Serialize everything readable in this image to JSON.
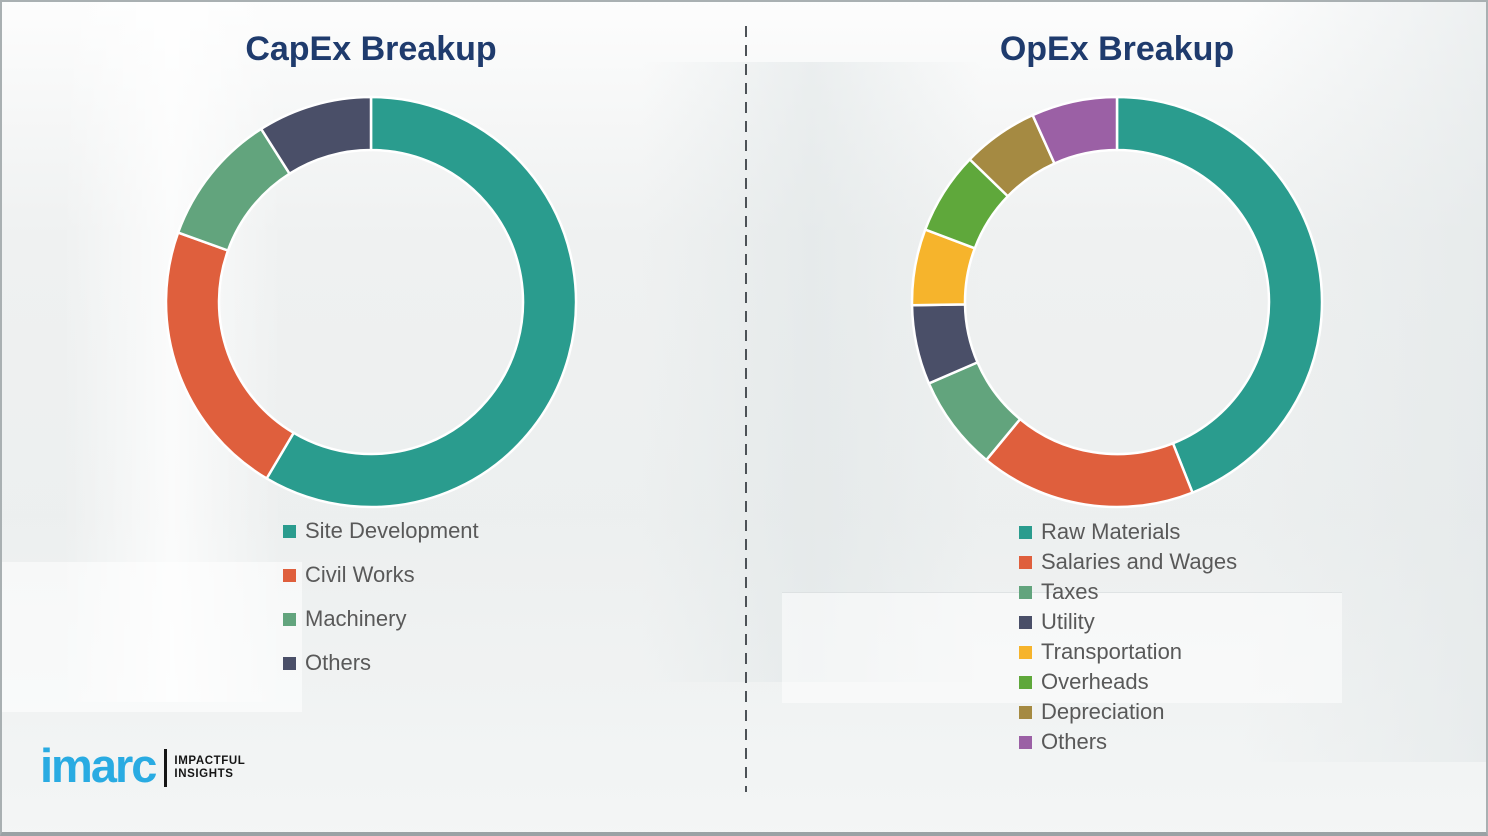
{
  "chart_data": [
    {
      "type": "pie",
      "subtype": "donut",
      "title": "CapEx Breakup",
      "categories": [
        "Site Development",
        "Civil Works",
        "Machinery",
        "Others"
      ],
      "values": [
        58.5,
        22,
        10.5,
        9
      ],
      "colors": [
        "#2A9C8E",
        "#DF5F3D",
        "#62A47D",
        "#4A4F68"
      ],
      "values_note": "percent shares estimated from arc angles; no numeric labels shown in chart",
      "legend_position": "below-left",
      "start_angle_deg": 0,
      "direction": "clockwise"
    },
    {
      "type": "pie",
      "subtype": "donut",
      "title": "OpEx Breakup",
      "categories": [
        "Raw Materials",
        "Salaries and Wages",
        "Taxes",
        "Utility",
        "Transportation",
        "Overheads",
        "Depreciation",
        "Others"
      ],
      "values": [
        44,
        17,
        7.5,
        6.25,
        6,
        6.5,
        6,
        6.75
      ],
      "colors": [
        "#2A9C8E",
        "#DF5F3D",
        "#62A47D",
        "#4A4F68",
        "#F6B42C",
        "#5FA83B",
        "#A58A42",
        "#9B60A5"
      ],
      "values_note": "percent shares estimated from arc angles; no numeric labels shown in chart",
      "legend_position": "below-left",
      "start_angle_deg": 0,
      "direction": "clockwise"
    }
  ],
  "logo": {
    "brand": "imarc",
    "tagline_line1": "IMPACTFUL",
    "tagline_line2": "INSIGHTS",
    "brand_color": "#29ABE2"
  },
  "styles": {
    "title_color": "#1F3B6D",
    "legend_text_color": "#595959",
    "divider_color": "#4D5257",
    "segment_gap_color": "#FFFFFF",
    "background_color": "#EEF0F0"
  }
}
